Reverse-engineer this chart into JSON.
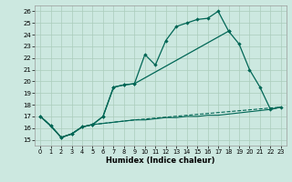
{
  "background_color": "#cce8e0",
  "grid_color": "#aaccbb",
  "line_color": "#006655",
  "xlabel": "Humidex (Indice chaleur)",
  "xlim": [
    -0.5,
    23.5
  ],
  "ylim": [
    14.5,
    26.5
  ],
  "yticks": [
    15,
    16,
    17,
    18,
    19,
    20,
    21,
    22,
    23,
    24,
    25,
    26
  ],
  "xticks": [
    0,
    1,
    2,
    3,
    4,
    5,
    6,
    7,
    8,
    9,
    10,
    11,
    12,
    13,
    14,
    15,
    16,
    17,
    18,
    19,
    20,
    21,
    22,
    23
  ],
  "line1_x": [
    0,
    1,
    2,
    3,
    4,
    5,
    6,
    7,
    8,
    9,
    10,
    11,
    12,
    13,
    14,
    15,
    16,
    17,
    18
  ],
  "line1_y": [
    17.0,
    16.2,
    15.2,
    15.5,
    16.1,
    16.3,
    17.0,
    19.5,
    19.7,
    19.8,
    22.3,
    21.4,
    23.5,
    24.7,
    25.0,
    25.3,
    25.4,
    26.0,
    24.3
  ],
  "line2_x": [
    0,
    1,
    2,
    3,
    4,
    5,
    6,
    7,
    8,
    9,
    18,
    19,
    20,
    21,
    22,
    23
  ],
  "line2_y": [
    17.0,
    16.2,
    15.2,
    15.5,
    16.1,
    16.3,
    17.0,
    19.5,
    19.7,
    19.8,
    24.3,
    23.2,
    21.0,
    19.5,
    17.6,
    17.8
  ],
  "line3_x": [
    0,
    1,
    2,
    3,
    4,
    5,
    6,
    7,
    8,
    9,
    10,
    11,
    12,
    13,
    14,
    15,
    16,
    17,
    18,
    19,
    20,
    21,
    22,
    23
  ],
  "line3_y": [
    17.0,
    16.2,
    15.2,
    15.5,
    16.1,
    16.3,
    16.4,
    16.5,
    16.6,
    16.7,
    16.7,
    16.8,
    16.9,
    16.9,
    17.0,
    17.0,
    17.1,
    17.1,
    17.2,
    17.3,
    17.4,
    17.5,
    17.6,
    17.8
  ],
  "line4_x": [
    0,
    1,
    2,
    3,
    4,
    5,
    6,
    7,
    8,
    9,
    23
  ],
  "line4_y": [
    17.0,
    16.2,
    15.2,
    15.5,
    16.1,
    16.3,
    16.4,
    16.5,
    16.6,
    16.7,
    17.8
  ]
}
